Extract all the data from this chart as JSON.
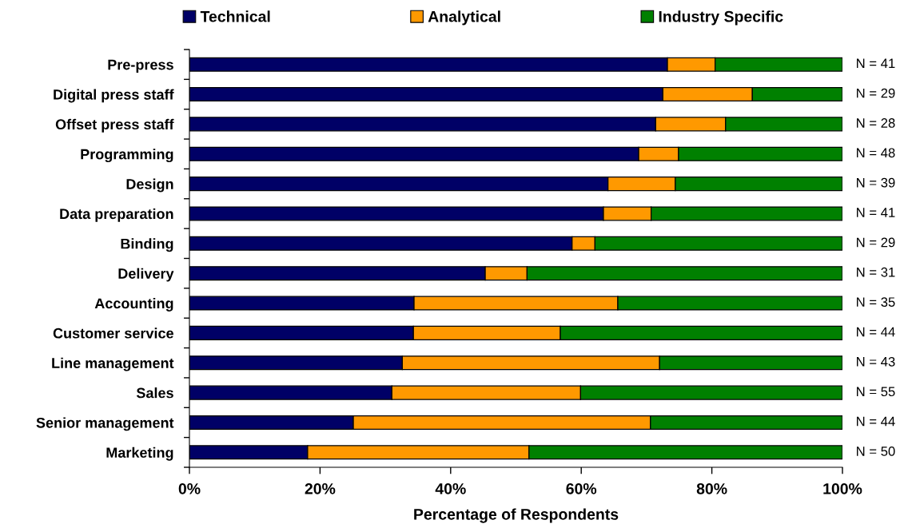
{
  "chart_data": {
    "type": "bar",
    "orientation": "horizontal",
    "stacked": true,
    "xlabel": "Percentage of Respondents",
    "categories": [
      "Pre-press",
      "Digital press staff",
      "Offset press staff",
      "Programming",
      "Design",
      "Data preparation",
      "Binding",
      "Delivery",
      "Accounting",
      "Customer service",
      "Line management",
      "Sales",
      "Senior management",
      "Marketing"
    ],
    "series": [
      {
        "name": "Technical",
        "color": "#000066",
        "values": [
          73.2,
          72.5,
          71.4,
          68.8,
          64.1,
          63.4,
          58.6,
          45.3,
          34.4,
          34.3,
          32.6,
          31.0,
          25.1,
          18.1
        ]
      },
      {
        "name": "Analytical",
        "color": "#ff9900",
        "values": [
          7.3,
          13.7,
          10.7,
          6.1,
          10.3,
          7.3,
          3.5,
          6.4,
          31.2,
          22.5,
          39.4,
          28.9,
          45.5,
          33.9
        ]
      },
      {
        "name": "Industry Specific",
        "color": "#008000",
        "values": [
          19.5,
          13.8,
          17.9,
          25.1,
          25.6,
          29.3,
          37.9,
          48.3,
          34.4,
          43.2,
          28.0,
          40.1,
          29.4,
          48.0
        ]
      }
    ],
    "xlim": [
      0,
      100
    ],
    "xticks": [
      {
        "value": 0,
        "label": "0%"
      },
      {
        "value": 20,
        "label": "20%"
      },
      {
        "value": 40,
        "label": "40%"
      },
      {
        "value": 60,
        "label": "60%"
      },
      {
        "value": 80,
        "label": "80%"
      },
      {
        "value": 100,
        "label": "100%"
      }
    ],
    "legend": "top",
    "grid": false,
    "annotations": [
      "N = 41",
      "N = 29",
      "N = 28",
      "N = 48",
      "N = 39",
      "N = 41",
      "N = 29",
      "N = 31",
      "N = 35",
      "N = 44",
      "N = 43",
      "N = 55",
      "N = 44",
      "N = 50"
    ]
  }
}
